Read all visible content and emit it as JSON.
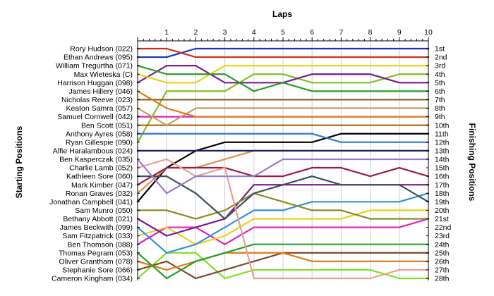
{
  "chart_data": {
    "type": "line",
    "title": "Laps",
    "ylabel_left": "Starting Positions",
    "ylabel_right": "Finishing Positions",
    "x": [
      0,
      1,
      2,
      3,
      4,
      5,
      6,
      7,
      8,
      9,
      10
    ],
    "x_tick_labels": [
      "1",
      "2",
      "3",
      "4",
      "5",
      "6",
      "7",
      "8",
      "9",
      "10"
    ],
    "grid": true,
    "finishing_labels": [
      "1st",
      "2nd",
      "3rd",
      "4th",
      "5th",
      "6th",
      "7th",
      "8th",
      "9th",
      "10th",
      "11th",
      "12th",
      "13th",
      "14th",
      "15th",
      "16th",
      "17th",
      "18th",
      "19th",
      "20th",
      "21st",
      "22nd",
      "23rd",
      "24th",
      "25th",
      "26th",
      "27th",
      "28th"
    ],
    "series": [
      {
        "name": "Rory Hudson (022)",
        "color": "#d42a1c",
        "positions": [
          1,
          1,
          2,
          2,
          2,
          2,
          2,
          2,
          2,
          2,
          2
        ]
      },
      {
        "name": "Ethan Andrews (095)",
        "color": "#1a2fc8",
        "positions": [
          2,
          2,
          1,
          1,
          1,
          1,
          1,
          1,
          1,
          1,
          1
        ]
      },
      {
        "name": "William Tregurtha (071)",
        "color": "#2a9a2a",
        "positions": [
          3,
          4,
          4,
          4,
          6,
          5,
          6,
          6,
          6,
          6,
          6
        ]
      },
      {
        "name": "Max Wieteska (C)",
        "color": "#e8d21a",
        "positions": [
          4,
          5,
          5,
          3,
          3,
          3,
          3,
          3,
          3,
          3,
          3
        ]
      },
      {
        "name": "Harrison Huggan (098)",
        "color": "#7a1a8c",
        "positions": [
          5,
          3,
          3,
          5,
          5,
          5,
          4,
          4,
          4,
          5,
          5
        ]
      },
      {
        "name": "James Hillery (046)",
        "color": "#e07a1a",
        "positions": [
          6,
          8,
          9,
          9,
          9,
          9,
          9,
          9,
          9,
          9,
          9
        ]
      },
      {
        "name": "Nicholas Reeve (023)",
        "color": "#8a5a2a",
        "positions": [
          7,
          7,
          7,
          7,
          7,
          7,
          7,
          7,
          7,
          7,
          7
        ]
      },
      {
        "name": "Keaton Samra (057)",
        "color": "#c0a060",
        "positions": [
          8,
          10,
          8,
          8,
          8,
          8,
          8,
          8,
          8,
          8,
          8
        ]
      },
      {
        "name": "Samuel Cornwell (042)",
        "color": "#e020c0",
        "positions": [
          9,
          9,
          9,
          9,
          9,
          9,
          9,
          9,
          9,
          9,
          9
        ]
      },
      {
        "name": "Ben Scott (051)",
        "color": "#b06010",
        "positions": [
          10,
          10,
          10,
          10,
          10,
          10,
          10,
          10,
          10,
          10,
          10
        ]
      },
      {
        "name": "Anthony Ayres (058)",
        "color": "#2a7ad8",
        "positions": [
          11,
          11,
          11,
          11,
          11,
          11,
          11,
          12,
          12,
          12,
          12
        ]
      },
      {
        "name": "Ryan Gillespie (090)",
        "color": "#80c020",
        "positions": [
          12,
          6,
          6,
          6,
          4,
          4,
          5,
          5,
          5,
          4,
          4
        ]
      },
      {
        "name": "Alfie Haralambous (024)",
        "color": "#202060",
        "positions": [
          13,
          13,
          13,
          13,
          13,
          13,
          13,
          13,
          13,
          13,
          13
        ]
      },
      {
        "name": "Ben Kasperczak (035)",
        "color": "#9a7ad0",
        "positions": [
          14,
          18,
          16,
          16,
          16,
          14,
          14,
          14,
          14,
          14,
          14
        ]
      },
      {
        "name": "Charlie Lamb (052)",
        "color": "#e8a090",
        "positions": [
          15,
          14,
          16,
          15,
          28,
          28,
          28,
          28,
          28,
          27,
          27
        ]
      },
      {
        "name": "Kathleen Sore (060)",
        "color": "#3a5060",
        "positions": [
          16,
          16,
          18,
          21,
          18,
          17,
          16,
          17,
          17,
          17,
          19
        ]
      },
      {
        "name": "Mark Kimber (047)",
        "color": "#9a1a4a",
        "positions": [
          17,
          15,
          15,
          15,
          16,
          16,
          15,
          15,
          16,
          15,
          16
        ]
      },
      {
        "name": "Ronan Graves (032)",
        "color": "#e09050",
        "positions": [
          18,
          15,
          15,
          14,
          13,
          13,
          13,
          13,
          13,
          13,
          13
        ]
      },
      {
        "name": "Jonathan Campbell (041)",
        "color": "#000000",
        "positions": [
          19,
          15,
          13,
          12,
          12,
          12,
          12,
          11,
          11,
          11,
          11
        ]
      },
      {
        "name": "Sam Munro (050)",
        "color": "#8a8a20",
        "positions": [
          20,
          20,
          21,
          20,
          18,
          19,
          20,
          20,
          21,
          21,
          21
        ]
      },
      {
        "name": "Bethany Abbott (021)",
        "color": "#7a1a8c",
        "positions": [
          21,
          23,
          22,
          21,
          17,
          17,
          17,
          17,
          17,
          17,
          17
        ]
      },
      {
        "name": "James Beckwith (099)",
        "color": "#3090e0",
        "positions": [
          22,
          25,
          24,
          22,
          20,
          20,
          19,
          19,
          19,
          19,
          18
        ]
      },
      {
        "name": "Sam Fitzpatrick (033)",
        "color": "#e8d21a",
        "positions": [
          23,
          22,
          24,
          23,
          21,
          21,
          21,
          21,
          20,
          20,
          20
        ]
      },
      {
        "name": "Ben Thomson (088)",
        "color": "#e020c0",
        "positions": [
          24,
          22,
          22,
          24,
          22,
          22,
          22,
          22,
          22,
          22,
          21
        ]
      },
      {
        "name": "Thomas Pegram (053)",
        "color": "#20a030",
        "positions": [
          25,
          28,
          26,
          25,
          24,
          24,
          24,
          24,
          24,
          24,
          24
        ]
      },
      {
        "name": "Oliver Grantham (078)",
        "color": "#e07a1a",
        "positions": [
          26,
          27,
          26,
          25,
          25,
          25,
          26,
          26,
          26,
          26,
          26
        ]
      },
      {
        "name": "Stephanie Sore (066)",
        "color": "#7a4a2a",
        "positions": [
          27,
          26,
          28,
          27,
          26,
          25,
          25,
          25,
          25,
          25,
          25
        ]
      },
      {
        "name": "Cameron Kingham (034)",
        "color": "#80e020",
        "positions": [
          28,
          25,
          25,
          28,
          27,
          27,
          27,
          27,
          27,
          28,
          28
        ]
      }
    ]
  }
}
